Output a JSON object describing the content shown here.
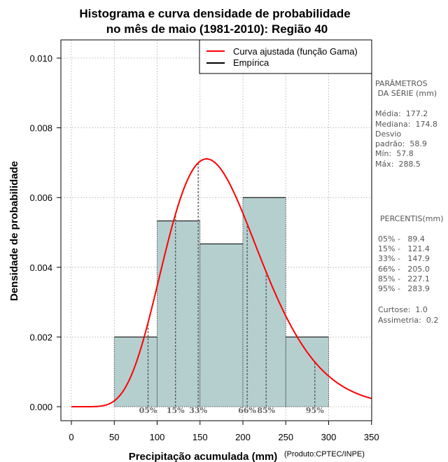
{
  "chart_data": {
    "type": "bar",
    "title": [
      "Histograma e curva densidade de probabilidade",
      "no mês de maio (1981-2010): Região 40"
    ],
    "xlabel": "Precipitação acumulada (mm)",
    "ylabel": "Densidade de probabilidade",
    "credit": "(Produto:CPTEC/INPE)",
    "xlim": [
      0,
      350
    ],
    "ylim": [
      0,
      0.0105
    ],
    "xticks": [
      "0",
      "50",
      "100",
      "150",
      "200",
      "250",
      "300",
      "350"
    ],
    "yticks": [
      "0.000",
      "0.002",
      "0.004",
      "0.006",
      "0.008",
      "0.010"
    ],
    "bins": [
      {
        "from": 50,
        "to": 100,
        "density": 0.002
      },
      {
        "from": 100,
        "to": 150,
        "density": 0.00533
      },
      {
        "from": 150,
        "to": 200,
        "density": 0.00467
      },
      {
        "from": 200,
        "to": 250,
        "density": 0.006
      },
      {
        "from": 250,
        "to": 300,
        "density": 0.002
      }
    ],
    "series": [
      {
        "name": "Curva ajustada (função Gama)",
        "color": "#ff0000",
        "distribution": "gamma",
        "mean": 177.2,
        "sd": 58.9
      },
      {
        "name": "Empírica",
        "color": "#000000"
      }
    ],
    "percentiles": [
      {
        "label": "05%",
        "value": 89.4
      },
      {
        "label": "15%",
        "value": 121.4
      },
      {
        "label": "33%",
        "value": 147.9
      },
      {
        "label": "66%",
        "value": 205.0
      },
      {
        "label": "85%",
        "value": 227.1
      },
      {
        "label": "95%",
        "value": 283.9
      }
    ],
    "colors": {
      "bar_fill": "#b5cfcf",
      "curve": "#ff0000",
      "grid": "#bbbbbb"
    }
  },
  "side_panel": {
    "params_title": [
      "PARÂMETROS",
      " DA SÉRIE (mm)"
    ],
    "params_lines": [
      "Média:  177.2",
      "Mediana:  174.8",
      "Desvio",
      "padrão:  58.9",
      "Mín:  57.8",
      "Máx:  288.5"
    ],
    "percentis_title": "PERCENTIS(mm)",
    "percentis_lines": [
      "05% -   89.4",
      "15% -   121.4",
      "33% -   147.9",
      "66% -   205.0",
      "85% -   227.1",
      "95% -   283.9"
    ],
    "stats_lines": [
      "Curtose:  1.0",
      "Assimetria:  0.2"
    ]
  }
}
